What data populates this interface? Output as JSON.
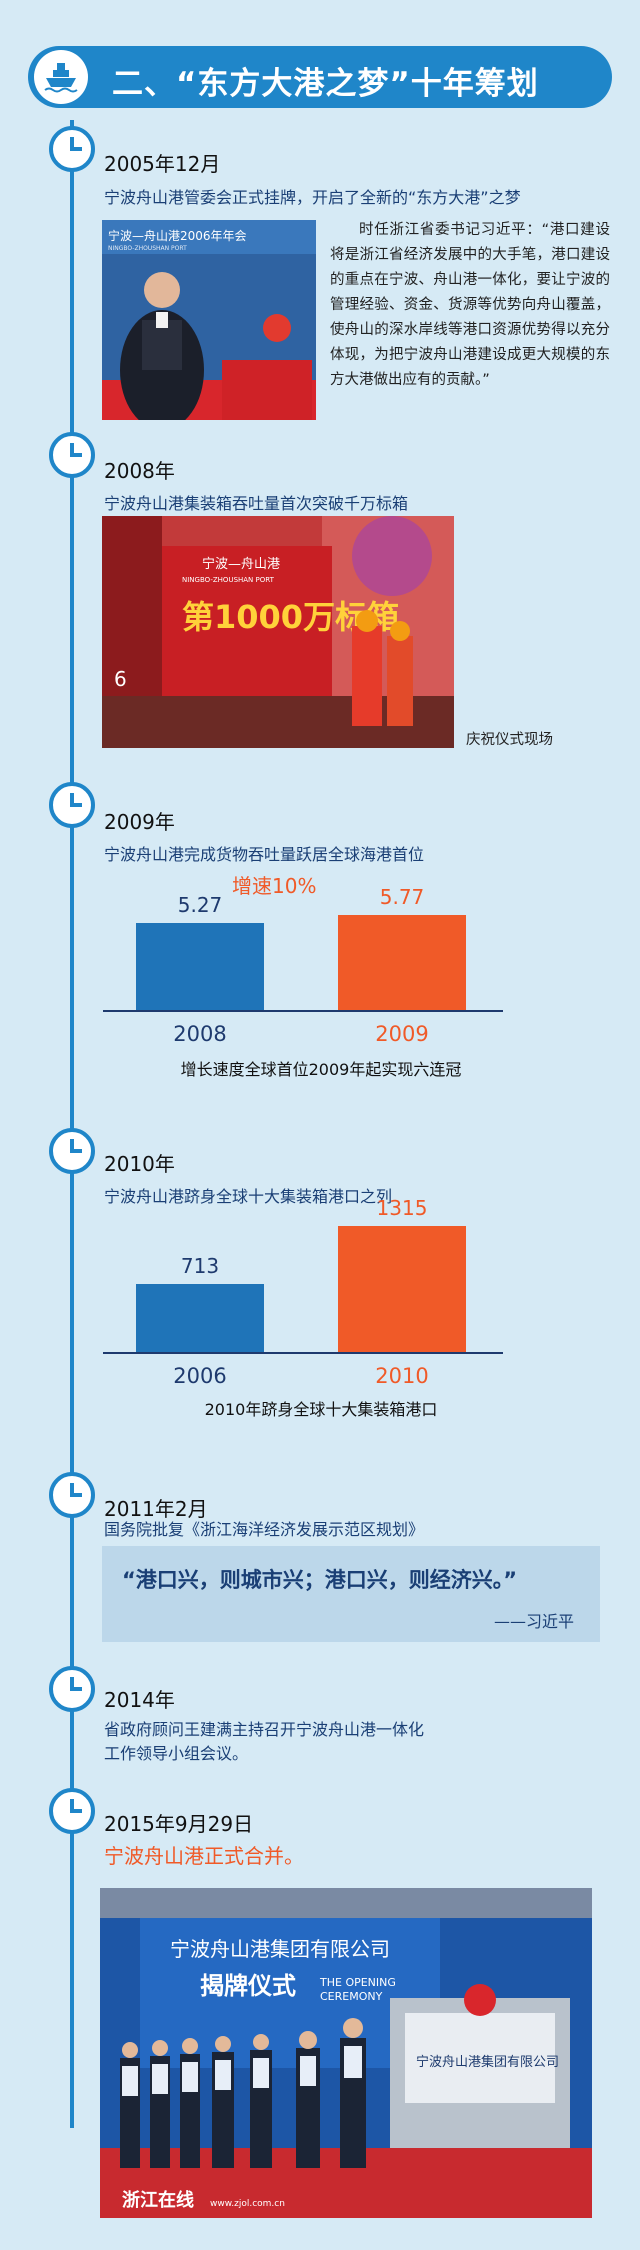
{
  "header": {
    "title": "二、“东方大港之梦”十年筹划",
    "icon": "ship-icon"
  },
  "colors": {
    "accent_blue": "#1f86c9",
    "bar_blue": "#1f74b8",
    "bar_orange": "#f05a28",
    "background": "#d6eaf5"
  },
  "events": [
    {
      "date": "2005年12月",
      "desc": "宁波舟山港管委会正式挂牌，开启了全新的“东方大港”之梦"
    },
    {
      "date": "2008年",
      "desc": "宁波舟山港集装箱吞吐量首次突破千万标箱"
    },
    {
      "date": "2009年",
      "desc": "宁波舟山港完成货物吞吐量跃居全球海港首位"
    },
    {
      "date": "2010年",
      "desc": "宁波舟山港跻身全球十大集装箱港口之列"
    },
    {
      "date": "2011年2月",
      "desc": "国务院批复《浙江海洋经济发展示范区规划》"
    },
    {
      "date": "2014年",
      "desc": "省政府顾问王建满主持召开宁波舟山港一体化",
      "desc2": "工作领导小组会议。"
    },
    {
      "date": "2015年9月29日",
      "desc": "宁波舟山港正式合并。"
    }
  ],
  "quote_2005": "时任浙江省委书记习近平：“港口建设将是浙江省经济发展中的大手笔，港口建设的重点在宁波、舟山港一体化，要让宁波的管理经验、资金、货源等优势向舟山覆盖，使舟山的深水岸线等港口资源优势得以充分体现，为把宁波舟山港建设成更大规模的东方大港做出应有的贡献。”",
  "photo_2005": {
    "banner_text": "宁波—舟山港2006年年会",
    "banner_en": "NINGBO-ZHOUSHAN PORT"
  },
  "photo_2008": {
    "caption": "庆祝仪式现场",
    "container_text": "第1000万标箱",
    "container_top": "宁波—舟山港",
    "container_en": "NINGBO-ZHOUSHAN PORT",
    "container_number": "6"
  },
  "chart_data": [
    {
      "type": "bar",
      "categories": [
        "2008",
        "2009"
      ],
      "values": [
        5.27,
        5.77
      ],
      "annotation": "增速10%",
      "caption": "增长速度全球首位2009年起实现六连冠"
    },
    {
      "type": "bar",
      "categories": [
        "2006",
        "2010"
      ],
      "values": [
        713,
        1315
      ],
      "caption": "2010年跻身全球十大集装箱港口"
    }
  ],
  "quote_2011": {
    "text": "“港口兴，则城市兴；港口兴，则经济兴。”",
    "author": "——习近平"
  },
  "photo_2015": {
    "banner_top": "宁波舟山港集团有限公司",
    "banner_cn": "揭牌仪式",
    "banner_en1": "THE OPENING",
    "banner_en2": "CEREMONY",
    "plaque": "宁波舟山港集团有限公司",
    "watermark": "浙江在线",
    "watermark_url": "www.zjol.com.cn"
  }
}
